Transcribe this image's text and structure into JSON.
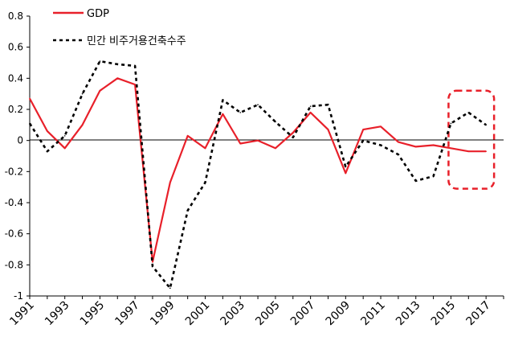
{
  "chart_data": {
    "type": "line",
    "x": [
      1991,
      1992,
      1993,
      1994,
      1995,
      1996,
      1997,
      1998,
      1999,
      2000,
      2001,
      2002,
      2003,
      2004,
      2005,
      2006,
      2007,
      2008,
      2009,
      2010,
      2011,
      2012,
      2013,
      2014,
      2015,
      2016,
      2017
    ],
    "x_tick_labels": [
      "1991",
      "1993",
      "1995",
      "1997",
      "1999",
      "2001",
      "2003",
      "2005",
      "2007",
      "2009",
      "2011",
      "2013",
      "2015",
      "2017"
    ],
    "ylim": [
      -1.0,
      0.8
    ],
    "y_tick_labels": [
      "0.8",
      "0.6",
      "0.4",
      "0.2",
      "0",
      "-0.2",
      "-0.4",
      "-0.6",
      "-0.8",
      "-1"
    ],
    "series": [
      {
        "name": "GDP",
        "color": "#e8202a",
        "style": "solid",
        "values": [
          0.27,
          0.06,
          -0.05,
          0.1,
          0.32,
          0.4,
          0.36,
          -0.78,
          -0.27,
          0.03,
          -0.05,
          0.17,
          -0.02,
          0.0,
          -0.05,
          0.05,
          0.18,
          0.07,
          -0.21,
          0.07,
          0.09,
          -0.01,
          -0.04,
          -0.03,
          -0.05,
          -0.07,
          -0.07
        ]
      },
      {
        "name": "민간 비주거용건축수주",
        "color": "#000000",
        "style": "dashed",
        "values": [
          0.11,
          -0.07,
          0.03,
          0.3,
          0.51,
          0.49,
          0.48,
          -0.81,
          -0.95,
          -0.45,
          -0.27,
          0.26,
          0.18,
          0.23,
          0.12,
          0.02,
          0.22,
          0.23,
          -0.17,
          0.0,
          -0.03,
          -0.09,
          -0.26,
          -0.23,
          0.11,
          0.18,
          0.1
        ]
      }
    ],
    "highlight": {
      "x_range": [
        2015,
        2017
      ],
      "style": "rounded dashed box",
      "color": "#e8202a"
    }
  }
}
